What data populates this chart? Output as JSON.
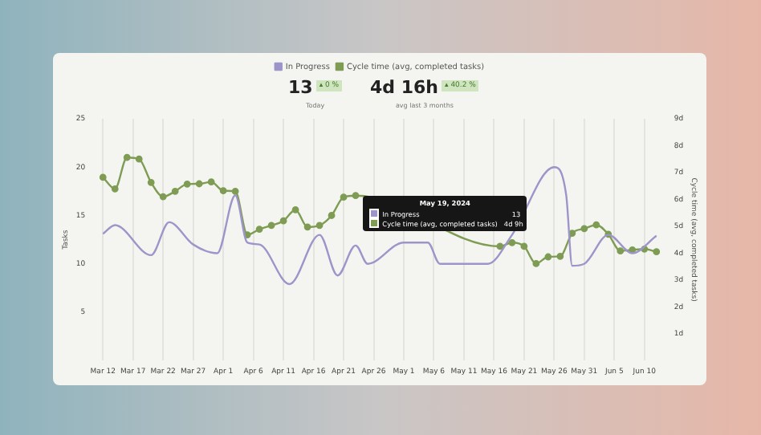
{
  "chart_data": {
    "type": "line",
    "xlabel": null,
    "ylabel": "Tasks",
    "y2label": "Cycle time (avg, completed tasks)",
    "categories": [
      "Mar 12",
      null,
      null,
      null,
      null,
      "Mar 17",
      null,
      null,
      null,
      null,
      "Mar 22",
      null,
      null,
      null,
      null,
      "Mar 27",
      null,
      null,
      null,
      null,
      "Apr 1",
      null,
      null,
      null,
      null,
      "Apr 6",
      null,
      null,
      null,
      null,
      "Apr 11",
      null,
      null,
      null,
      null,
      "Apr 16",
      null,
      null,
      null,
      null,
      "Apr 21",
      null,
      null,
      null,
      null,
      "Apr 26",
      null,
      null,
      null,
      null,
      "May 1",
      null,
      null,
      null,
      null,
      "May 6",
      null,
      null,
      null,
      null,
      "May 11",
      null,
      null,
      null,
      null,
      "May 16",
      null,
      null,
      null,
      null,
      "May 21",
      null,
      null,
      null,
      null,
      "May 26",
      null,
      null,
      null,
      null,
      "May 31",
      null,
      null,
      null,
      null,
      "Jun 5",
      null,
      null,
      null,
      null,
      "Jun 10",
      null,
      null
    ],
    "series": [
      {
        "name": "In Progress",
        "color": "#9d95c9",
        "marker": "none",
        "values": [
          13.1,
          null,
          14.0,
          null,
          null,
          null,
          null,
          null,
          10.9,
          null,
          null,
          14.3,
          null,
          null,
          null,
          12.0,
          null,
          null,
          null,
          11.1,
          null,
          null,
          17.1,
          null,
          12.2,
          null,
          12.0,
          null,
          null,
          null,
          null,
          7.9,
          null,
          null,
          null,
          null,
          13.0,
          null,
          null,
          8.8,
          null,
          null,
          11.9,
          null,
          10.0,
          null,
          null,
          null,
          null,
          null,
          12.2,
          null,
          null,
          null,
          12.2,
          null,
          10.0,
          null,
          null,
          null,
          null,
          null,
          null,
          null,
          10.0,
          null,
          null,
          null,
          13,
          null,
          null,
          null,
          null,
          null,
          null,
          20.0,
          null,
          17.1,
          9.8,
          null,
          10.0,
          null,
          null,
          null,
          13.0,
          null,
          null,
          null,
          11.1,
          null,
          null,
          null,
          12.9
        ]
      },
      {
        "name": "Cycle time (avg, completed tasks)",
        "color": "#7f9c55",
        "axis": "y2",
        "marker": "circle",
        "values": [
          6.82,
          null,
          6.39,
          null,
          7.56,
          null,
          7.5,
          null,
          6.63,
          null,
          6.1,
          null,
          6.3,
          null,
          6.57,
          null,
          6.58,
          null,
          6.65,
          null,
          6.32,
          null,
          6.3,
          null,
          4.68,
          null,
          4.89,
          null,
          5.03,
          null,
          5.2,
          null,
          5.61,
          null,
          4.97,
          null,
          5.03,
          null,
          5.4,
          null,
          6.08,
          null,
          6.14,
          null,
          null,
          null,
          null,
          null,
          null,
          null,
          null,
          null,
          null,
          null,
          null,
          null,
          null,
          null,
          null,
          null,
          null,
          null,
          null,
          null,
          null,
          null,
          4.25,
          null,
          4.39,
          null,
          4.25,
          null,
          3.61,
          null,
          3.86,
          null,
          3.88,
          null,
          4.74,
          null,
          4.91,
          null,
          5.05,
          null,
          4.7,
          null,
          4.08,
          null,
          4.12,
          null,
          4.15,
          null,
          4.05
        ]
      }
    ],
    "ylim": [
      0,
      25
    ],
    "yticks": [
      5,
      10,
      15,
      20,
      25
    ],
    "y2lim": [
      0,
      9
    ],
    "y2ticks": [
      {
        "value": 1,
        "label": "1d"
      },
      {
        "value": 2,
        "label": "2d"
      },
      {
        "value": 3,
        "label": "3d"
      },
      {
        "value": 4,
        "label": "4d"
      },
      {
        "value": 5,
        "label": "5d"
      },
      {
        "value": 6,
        "label": "6d"
      },
      {
        "value": 7,
        "label": "7d"
      },
      {
        "value": 8,
        "label": "8d"
      },
      {
        "value": 9,
        "label": "9d"
      }
    ],
    "grid": "x",
    "legend": "top",
    "line_style": "solid",
    "annotations": [
      "13",
      "▴ 0 %",
      "Today",
      "4d 16h",
      "▴ 40.2 %",
      "avg last 3 months",
      "May 19, 2024",
      "In Progress",
      "13",
      "Cycle time (avg, completed tasks)",
      "4d 9h"
    ]
  }
}
